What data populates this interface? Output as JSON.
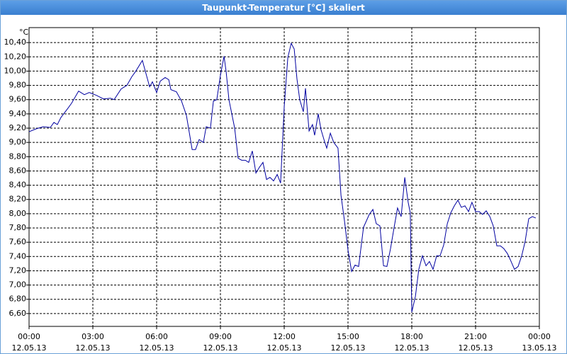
{
  "chart_data": {
    "type": "line",
    "title": "Taupunkt-Temperatur [°C] skaliert",
    "y_unit": "°C",
    "color": "#0000a0",
    "grid": true,
    "xlim": [
      0,
      24
    ],
    "xticks": [
      {
        "value": 0,
        "label": "00:00"
      },
      {
        "value": 3,
        "label": "03:00"
      },
      {
        "value": 6,
        "label": "06:00"
      },
      {
        "value": 9,
        "label": "09:00"
      },
      {
        "value": 12,
        "label": "12:00"
      },
      {
        "value": 15,
        "label": "15:00"
      },
      {
        "value": 18,
        "label": "18:00"
      },
      {
        "value": 21,
        "label": "21:00"
      },
      {
        "value": 24,
        "label": "00:00"
      }
    ],
    "xtick_dates": [
      "12.05.13",
      "12.05.13",
      "12.05.13",
      "12.05.13",
      "12.05.13",
      "12.05.13",
      "12.05.13",
      "12.05.13",
      "13.05.13"
    ],
    "ylim": [
      6.42,
      10.61
    ],
    "yticks": [
      {
        "value": 6.6,
        "label": "6,60"
      },
      {
        "value": 6.8,
        "label": "6,80"
      },
      {
        "value": 7.0,
        "label": "7,00"
      },
      {
        "value": 7.2,
        "label": "7,20"
      },
      {
        "value": 7.4,
        "label": "7,40"
      },
      {
        "value": 7.6,
        "label": "7,60"
      },
      {
        "value": 7.8,
        "label": "7,80"
      },
      {
        "value": 8.0,
        "label": "8,00"
      },
      {
        "value": 8.2,
        "label": "8,20"
      },
      {
        "value": 8.4,
        "label": "8,40"
      },
      {
        "value": 8.6,
        "label": "8,60"
      },
      {
        "value": 8.8,
        "label": "8,80"
      },
      {
        "value": 9.0,
        "label": "9,00"
      },
      {
        "value": 9.2,
        "label": "9,20"
      },
      {
        "value": 9.4,
        "label": "9,40"
      },
      {
        "value": 9.6,
        "label": "9,60"
      },
      {
        "value": 9.8,
        "label": "9,80"
      },
      {
        "value": 10.0,
        "label": "10,00"
      },
      {
        "value": 10.2,
        "label": "10,20"
      },
      {
        "value": 10.4,
        "label": "10,40"
      }
    ],
    "x": [
      0,
      0.33,
      0.67,
      1,
      1.17,
      1.33,
      1.5,
      1.83,
      2,
      2.33,
      2.6,
      2.83,
      3.17,
      3.5,
      3.83,
      4,
      4.33,
      4.6,
      4.83,
      5,
      5.33,
      5.43,
      5.67,
      5.8,
      6,
      6.17,
      6.4,
      6.57,
      6.67,
      6.93,
      7.17,
      7.4,
      7.67,
      7.83,
      8,
      8.2,
      8.33,
      8.53,
      8.67,
      8.83,
      9,
      9.17,
      9.27,
      9.4,
      9.67,
      9.83,
      10,
      10.17,
      10.33,
      10.5,
      10.67,
      10.83,
      11,
      11.17,
      11.33,
      11.5,
      11.67,
      11.83,
      12,
      12.17,
      12.33,
      12.47,
      12.6,
      12.73,
      12.9,
      13,
      13.17,
      13.33,
      13.43,
      13.6,
      13.73,
      13.9,
      14,
      14.17,
      14.33,
      14.53,
      14.67,
      14.83,
      15,
      15.17,
      15.33,
      15.5,
      15.73,
      16,
      16.17,
      16.33,
      16.5,
      16.67,
      16.83,
      17,
      17.17,
      17.33,
      17.5,
      17.67,
      17.83,
      17.93,
      18,
      18.17,
      18.33,
      18.5,
      18.67,
      18.83,
      19,
      19.17,
      19.33,
      19.5,
      19.67,
      19.83,
      20,
      20.17,
      20.33,
      20.5,
      20.67,
      20.83,
      21,
      21.17,
      21.33,
      21.5,
      21.67,
      21.83,
      22,
      22.17,
      22.33,
      22.5,
      22.67,
      22.83,
      23,
      23.17,
      23.33,
      23.5,
      23.67,
      23.83
    ],
    "values": [
      9.15,
      9.19,
      9.22,
      9.21,
      9.28,
      9.25,
      9.35,
      9.48,
      9.55,
      9.72,
      9.67,
      9.7,
      9.66,
      9.61,
      9.62,
      9.6,
      9.75,
      9.8,
      9.92,
      9.99,
      10.15,
      10.04,
      9.78,
      9.85,
      9.7,
      9.86,
      9.91,
      9.88,
      9.74,
      9.71,
      9.58,
      9.38,
      8.9,
      8.9,
      9.04,
      9.0,
      9.22,
      9.2,
      9.58,
      9.6,
      9.94,
      10.21,
      9.99,
      9.6,
      9.2,
      8.78,
      8.75,
      8.75,
      8.72,
      8.88,
      8.57,
      8.65,
      8.72,
      8.48,
      8.51,
      8.46,
      8.55,
      8.43,
      9.5,
      10.19,
      10.39,
      10.31,
      9.89,
      9.6,
      9.43,
      9.76,
      9.16,
      9.25,
      9.1,
      9.4,
      9.18,
      9.01,
      8.92,
      9.13,
      9.0,
      8.92,
      8.26,
      7.91,
      7.49,
      7.19,
      7.28,
      7.26,
      7.81,
      7.99,
      8.06,
      7.86,
      7.83,
      7.27,
      7.26,
      7.51,
      7.81,
      8.08,
      7.96,
      8.51,
      8.16,
      8.01,
      6.62,
      6.84,
      7.22,
      7.41,
      7.27,
      7.33,
      7.22,
      7.41,
      7.41,
      7.56,
      7.86,
      8.01,
      8.11,
      8.19,
      8.09,
      8.11,
      8.03,
      8.16,
      8.03,
      8.03,
      7.99,
      8.04,
      7.96,
      7.83,
      7.55,
      7.55,
      7.51,
      7.44,
      7.33,
      7.22,
      7.26,
      7.41,
      7.61,
      7.93,
      7.96,
      7.94
    ]
  }
}
